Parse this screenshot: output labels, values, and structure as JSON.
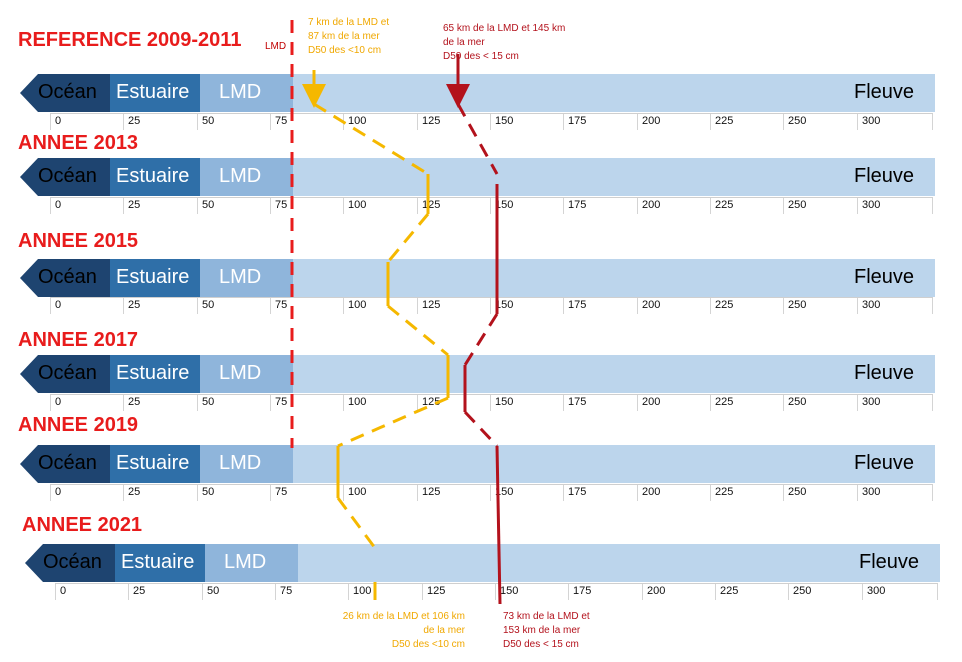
{
  "zones": {
    "ocean": "Océan",
    "estuaire": "Estuaire",
    "lmd": "LMD",
    "fleuve": "Fleuve"
  },
  "axis_ticks": [
    "0",
    "25",
    "50",
    "75",
    "100",
    "125",
    "150",
    "175",
    "200",
    "225",
    "250",
    "300"
  ],
  "rows": [
    {
      "label": "REFERENCE 2009-2011"
    },
    {
      "label": "ANNEE 2013"
    },
    {
      "label": "ANNEE 2015"
    },
    {
      "label": "ANNEE 2017"
    },
    {
      "label": "ANNEE 2019"
    },
    {
      "label": "ANNEE 2021"
    }
  ],
  "lmd_marker_label": "LMD",
  "annotations": {
    "top_fine": [
      "7 km de la LMD et",
      "87 km de la mer",
      "D50 des <10 cm"
    ],
    "top_coarse": [
      "65 km de la LMD et 145 km",
      "de la mer",
      "D50 des < 15 cm"
    ],
    "bottom_fine": [
      "26 km de la LMD et 106 km",
      "de la mer",
      "D50 des <10 cm"
    ],
    "bottom_coarse": [
      "73 km de la LMD et",
      "153 km de la mer",
      "D50 des < 15 cm"
    ]
  },
  "colors": {
    "fine_sediment": "#f5b800",
    "coarse_sediment": "#b3121c",
    "lmd_line": "#e81c1c",
    "year_label": "#e81c1c"
  }
}
